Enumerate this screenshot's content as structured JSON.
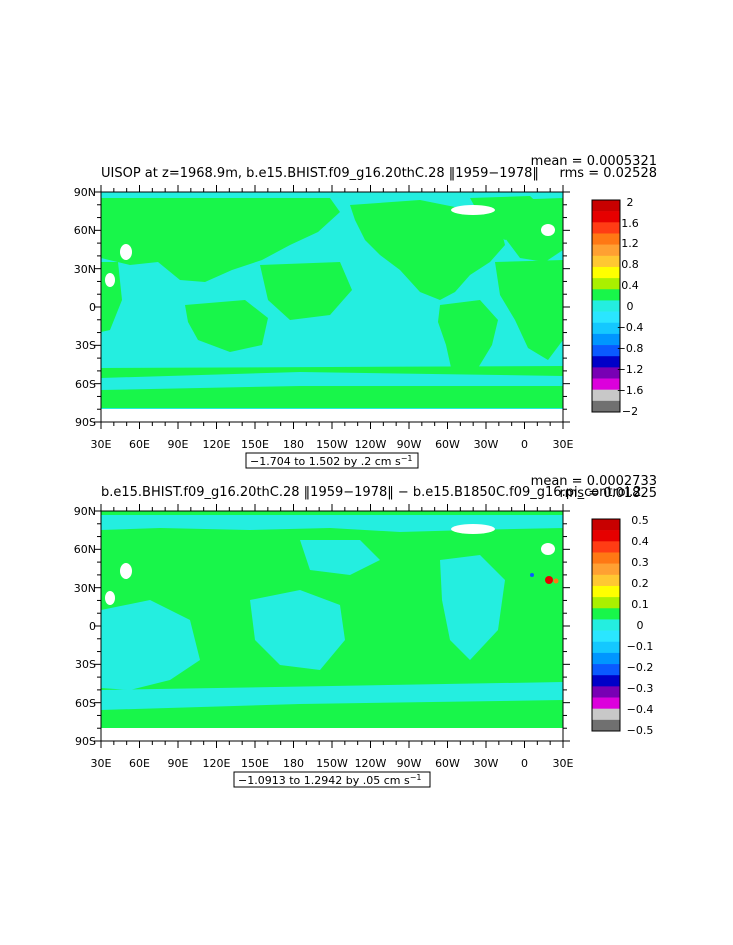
{
  "colors": {
    "land_green": "#18f64a",
    "ocean_cyan": "#24eee0",
    "sea_ice_white": "#ffffff"
  },
  "panels": [
    {
      "title": "UISOP at z=1968.9m, b.e15.BHIST.f09_g16.20thC.28 ‖1959−1978‖",
      "stats": [
        "mean = 0.0005321",
        "rms = 0.02528"
      ],
      "range_note": "−1.704 to 1.502 by .2 cm s",
      "range_exp": "−1",
      "lat_labels": [
        "90N",
        "60N",
        "30N",
        "0",
        "30S",
        "60S",
        "90S"
      ],
      "lon_labels": [
        "30E",
        "60E",
        "90E",
        "120E",
        "150E",
        "180",
        "150W",
        "120W",
        "90W",
        "60W",
        "30W",
        "0",
        "30E"
      ],
      "colorbar": {
        "labels": [
          "2",
          "1.6",
          "1.2",
          "0.8",
          "0.4",
          "0",
          "−0.4",
          "−0.8",
          "−1.2",
          "−1.6",
          "−2"
        ],
        "colors": [
          "#c80000",
          "#e60000",
          "#ff3c14",
          "#ff7814",
          "#ffa032",
          "#ffc832",
          "#ffff00",
          "#aaf000",
          "#18f64a",
          "#24eee0",
          "#2ae6ff",
          "#14c8ff",
          "#0096ff",
          "#0a5aff",
          "#0000c8",
          "#7800b4",
          "#dc00dc",
          "#c8c8c8",
          "#707070"
        ]
      }
    },
    {
      "title": "b.e15.BHIST.f09_g16.20thC.28 ‖1959−1978‖ − b.e15.B1850C.f09_g16.pi_control.2",
      "stats": [
        "mean = 0.0002733",
        "rms = 0.01825"
      ],
      "range_note": "−1.0913 to 1.2942 by .05 cm s",
      "range_exp": "−1",
      "lat_labels": [
        "90N",
        "60N",
        "30N",
        "0",
        "30S",
        "60S",
        "90S"
      ],
      "lon_labels": [
        "30E",
        "60E",
        "90E",
        "120E",
        "150E",
        "180",
        "150W",
        "120W",
        "90W",
        "60W",
        "30W",
        "0",
        "30E"
      ],
      "colorbar": {
        "labels": [
          "0.5",
          "0.4",
          "0.3",
          "0.2",
          "0.1",
          "0",
          "−0.1",
          "−0.2",
          "−0.3",
          "−0.4",
          "−0.5"
        ],
        "colors": [
          "#c80000",
          "#e60000",
          "#ff3c14",
          "#ff7814",
          "#ffa032",
          "#ffc832",
          "#ffff00",
          "#aaf000",
          "#18f64a",
          "#24eee0",
          "#2ae6ff",
          "#14c8ff",
          "#0096ff",
          "#0a5aff",
          "#0000c8",
          "#7800b4",
          "#dc00dc",
          "#c8c8c8",
          "#707070"
        ]
      }
    }
  ]
}
